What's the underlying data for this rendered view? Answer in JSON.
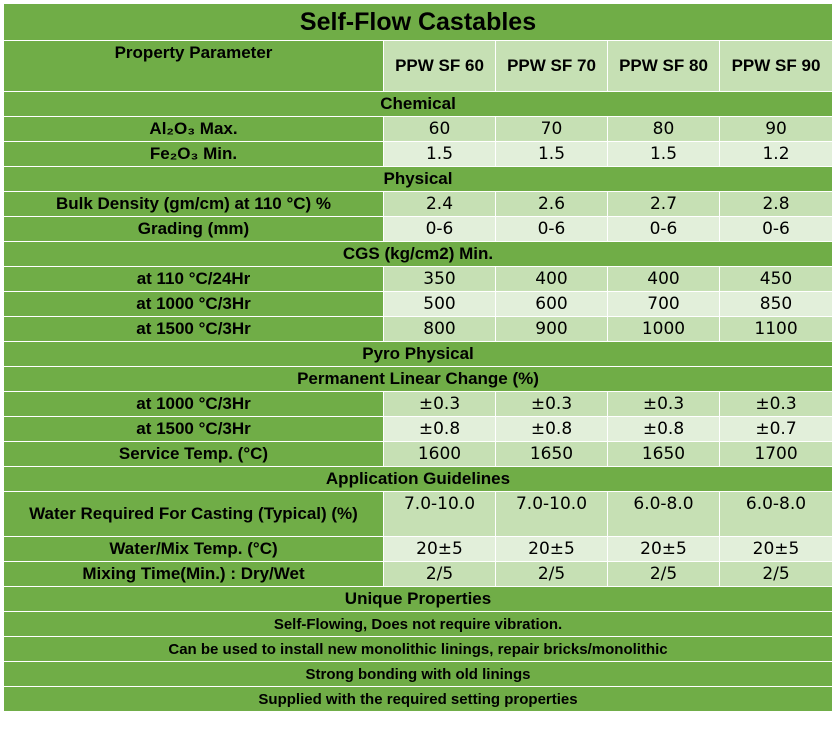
{
  "title": "Self-Flow Castables",
  "header": {
    "property_label": "Property Parameter",
    "grades": [
      "PPW SF 60",
      "PPW SF 70",
      "PPW SF 80",
      "PPW SF 90"
    ]
  },
  "sections": {
    "chemical": "Chemical",
    "physical": "Physical",
    "cgs": "CGS (kg/cm2) Min.",
    "pyro": "Pyro Physical",
    "plc": "Permanent Linear Change (%)",
    "app": "Application Guidelines",
    "unique": "Unique Properties"
  },
  "rows": {
    "al2o3": {
      "label": "Al₂O₃ Max.",
      "values": [
        "60",
        "70",
        "80",
        "90"
      ]
    },
    "fe2o3": {
      "label": "Fe₂O₃ Min.",
      "values": [
        "1.5",
        "1.5",
        "1.5",
        "1.2"
      ]
    },
    "bulk": {
      "label": "Bulk Density (gm/cm) at 110 °C) %",
      "values": [
        "2.4",
        "2.6",
        "2.7",
        "2.8"
      ]
    },
    "grading": {
      "label": "Grading (mm)",
      "values": [
        "0-6",
        "0-6",
        "0-6",
        "0-6"
      ]
    },
    "cgs110": {
      "label": "at 110 °C/24Hr",
      "values": [
        "350",
        "400",
        "400",
        "450"
      ]
    },
    "cgs1000": {
      "label": "at 1000 °C/3Hr",
      "values": [
        "500",
        "600",
        "700",
        "850"
      ]
    },
    "cgs1500": {
      "label": "at 1500 °C/3Hr",
      "values": [
        "800",
        "900",
        "1000",
        "1100"
      ]
    },
    "plc1000": {
      "label": "at 1000 °C/3Hr",
      "values": [
        "±0.3",
        "±0.3",
        "±0.3",
        "±0.3"
      ]
    },
    "plc1500": {
      "label": "at 1500 °C/3Hr",
      "values": [
        "±0.8",
        "±0.8",
        "±0.8",
        "±0.7"
      ]
    },
    "service": {
      "label": "Service Temp. (°C)",
      "values": [
        "1600",
        "1650",
        "1650",
        "1700"
      ]
    },
    "water": {
      "label": "Water Required For Casting (Typical) (%)",
      "values": [
        "7.0-10.0",
        "7.0-10.0",
        "6.0-8.0",
        "6.0-8.0"
      ]
    },
    "mixtemp": {
      "label": "Water/Mix Temp. (°C)",
      "values": [
        "20±5",
        "20±5",
        "20±5",
        "20±5"
      ]
    },
    "mixtime": {
      "label": "Mixing Time(Min.) : Dry/Wet",
      "values": [
        "2/5",
        "2/5",
        "2/5",
        "2/5"
      ]
    }
  },
  "unique_properties": [
    "Self-Flowing, Does not require vibration.",
    "Can be used to install new monolithic linings, repair bricks/monolithic",
    "Strong bonding with old linings",
    "Supplied with the required setting properties"
  ],
  "colors": {
    "section_green": "#70ad47",
    "value_light": "#c6e0b4",
    "value_lighter": "#e2efda"
  }
}
